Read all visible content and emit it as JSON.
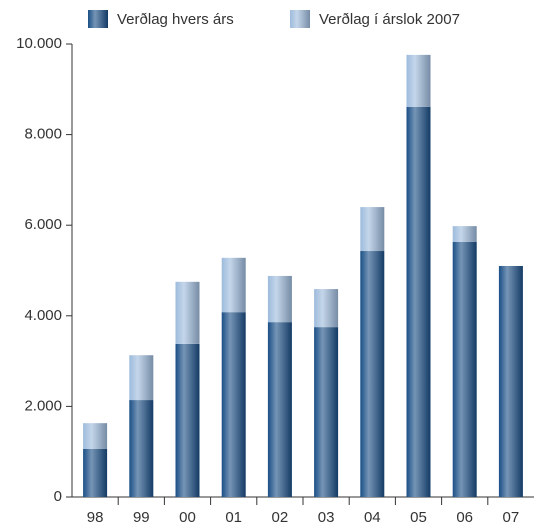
{
  "chart_data": {
    "type": "stacked_bar",
    "categories": [
      "98",
      "99",
      "00",
      "01",
      "02",
      "03",
      "04",
      "05",
      "06",
      "07"
    ],
    "series": [
      {
        "name": "Verðlag hvers árs",
        "color": "#1a4f86",
        "values": [
          1060,
          2140,
          3380,
          4080,
          3860,
          3750,
          5430,
          8610,
          5630,
          5100
        ]
      },
      {
        "name": "Verðlag í árslok 2007",
        "color": "#9dbbdc",
        "values": [
          570,
          990,
          1370,
          1200,
          1020,
          840,
          970,
          1150,
          350,
          0
        ]
      }
    ],
    "ylim": [
      0,
      10000
    ],
    "yticks": [
      0,
      {
        "value": 2000,
        "label": "2.000"
      },
      {
        "value": 4000,
        "label": "4.000"
      },
      {
        "value": 6000,
        "label": "6.000"
      },
      {
        "value": 8000,
        "label": "8.000"
      },
      {
        "value": 10000,
        "label": "10.000"
      }
    ],
    "grid": false
  }
}
